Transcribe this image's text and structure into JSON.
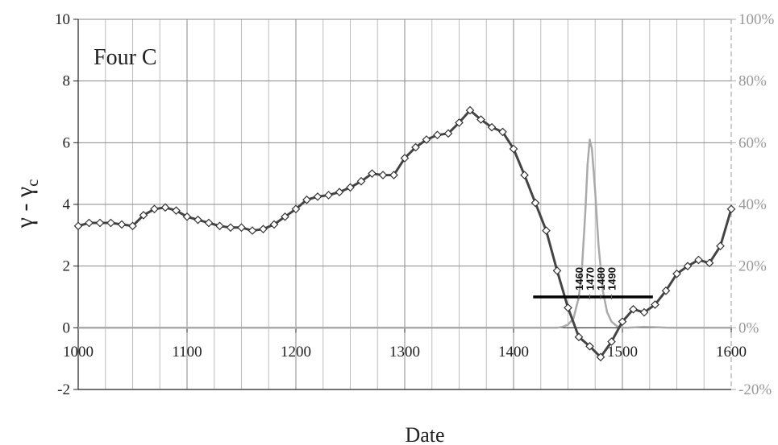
{
  "chart_data": {
    "type": "line",
    "title": "Four C",
    "xlabel": "Date",
    "ylabel_main": "γ - γ",
    "ylabel_sub": "c",
    "xlim": [
      1000,
      1600
    ],
    "ylim": [
      -2,
      10
    ],
    "y2lim": [
      -20,
      100
    ],
    "x_ticks": [
      1000,
      1100,
      1200,
      1300,
      1400,
      1500,
      1600
    ],
    "x_tick_labels": [
      "1000",
      "1100",
      "1200",
      "1300",
      "1400",
      "1500",
      "1600"
    ],
    "y_ticks": [
      -2,
      0,
      2,
      4,
      6,
      8,
      10
    ],
    "y_tick_labels": [
      "-2",
      "0",
      "2",
      "4",
      "6",
      "8",
      "10"
    ],
    "y2_ticks": [
      -20,
      0,
      20,
      40,
      60,
      80,
      100
    ],
    "y2_tick_labels": [
      "-20%",
      "0%",
      "20%",
      "40%",
      "60%",
      "80%",
      "100%"
    ],
    "grid": true,
    "series": [
      {
        "axis": "left",
        "color": "#444444",
        "marker": "diamond",
        "x": [
          1000,
          1010,
          1020,
          1030,
          1040,
          1050,
          1060,
          1070,
          1080,
          1090,
          1100,
          1110,
          1120,
          1130,
          1140,
          1150,
          1160,
          1170,
          1180,
          1190,
          1200,
          1210,
          1220,
          1230,
          1240,
          1250,
          1260,
          1270,
          1280,
          1290,
          1300,
          1310,
          1320,
          1330,
          1340,
          1350,
          1360,
          1370,
          1380,
          1390,
          1400,
          1410,
          1420,
          1430,
          1440,
          1450,
          1460,
          1470,
          1480,
          1490,
          1500,
          1510,
          1520,
          1530,
          1540,
          1550,
          1560,
          1570,
          1580,
          1590,
          1600
        ],
        "y": [
          3.3,
          3.4,
          3.4,
          3.4,
          3.35,
          3.3,
          3.65,
          3.85,
          3.9,
          3.8,
          3.6,
          3.5,
          3.4,
          3.3,
          3.25,
          3.25,
          3.15,
          3.2,
          3.35,
          3.6,
          3.85,
          4.15,
          4.25,
          4.3,
          4.4,
          4.55,
          4.75,
          5.0,
          4.95,
          4.95,
          5.5,
          5.85,
          6.1,
          6.25,
          6.3,
          6.65,
          7.05,
          6.75,
          6.5,
          6.35,
          5.8,
          4.95,
          4.05,
          3.15,
          1.85,
          0.65,
          -0.3,
          -0.6,
          -0.95,
          -0.45,
          0.2,
          0.6,
          0.5,
          0.75,
          1.2,
          1.75,
          2.0,
          2.2,
          2.1,
          2.65,
          3.85
        ]
      },
      {
        "axis": "right",
        "color": "#aaaaaa",
        "marker": "none",
        "x": [
          1000,
          1430,
          1440,
          1445,
          1450,
          1455,
          1460,
          1463,
          1466,
          1468,
          1470,
          1472,
          1475,
          1478,
          1482,
          1486,
          1490,
          1495,
          1500,
          1505,
          1510,
          1520,
          1530,
          1540,
          1550,
          1600
        ],
        "y": [
          0,
          0,
          0,
          0.3,
          1.0,
          3,
          10,
          20,
          38,
          53,
          61,
          58,
          44,
          27,
          12,
          5,
          2,
          0.5,
          0,
          0,
          0.1,
          0.3,
          0.2,
          0.05,
          0,
          0
        ]
      }
    ],
    "date_bar": {
      "x_start": 1418,
      "x_end": 1528,
      "y": 1.0,
      "ticks": [
        1460,
        1470,
        1480,
        1490
      ],
      "tick_labels": [
        "1460",
        "1470",
        "1480",
        "1490"
      ]
    }
  }
}
